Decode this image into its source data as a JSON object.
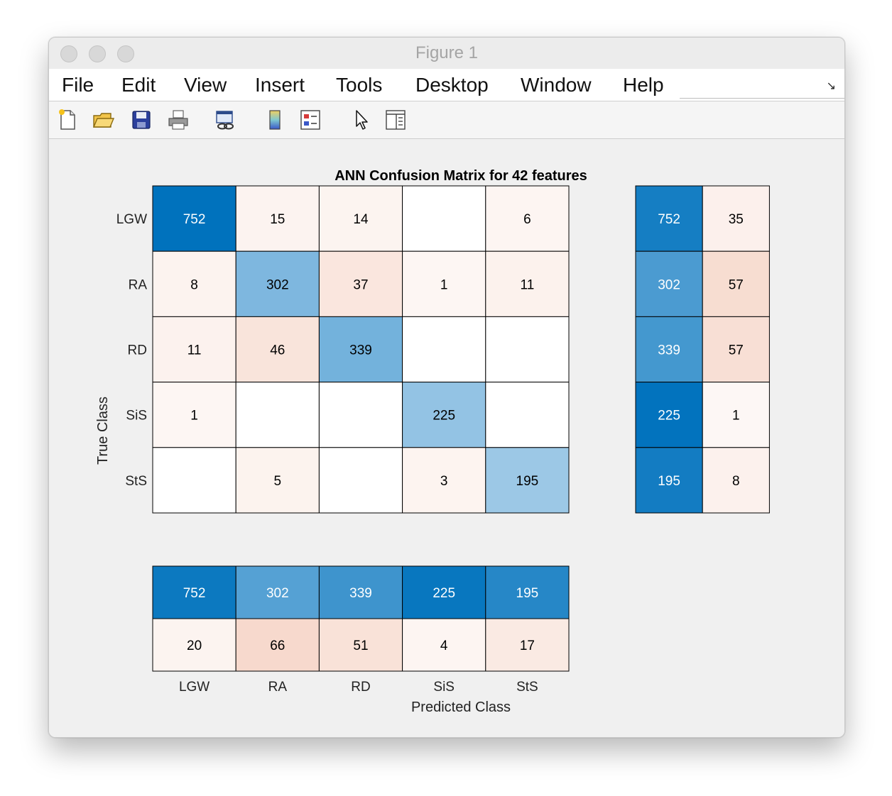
{
  "window": {
    "title": "Figure 1"
  },
  "menu": [
    "File",
    "Edit",
    "View",
    "Insert",
    "Tools",
    "Desktop",
    "Window",
    "Help"
  ],
  "toolbar": {
    "icons": [
      "new-figure-icon",
      "open-file-icon",
      "save-icon",
      "print-icon",
      "link-plot-icon",
      "colorbar-icon",
      "legend-icon",
      "pointer-icon",
      "property-inspector-icon"
    ]
  },
  "colors": {
    "blue_full": "#0072bd",
    "blue_light": "#d2e6f5",
    "red_full": "#d95319",
    "empty_cell": "#ffffff",
    "window_bg": "#f0f0f0"
  },
  "chart_data": {
    "type": "heatmap",
    "title": "ANN Confusion Matrix for 42 features",
    "xlabel": "Predicted Class",
    "ylabel": "True Class",
    "classes": [
      "LGW",
      "RA",
      "RD",
      "SiS",
      "StS"
    ],
    "matrix": [
      [
        752,
        15,
        14,
        null,
        6
      ],
      [
        8,
        302,
        37,
        1,
        11
      ],
      [
        11,
        46,
        339,
        null,
        null
      ],
      [
        1,
        null,
        null,
        225,
        null
      ],
      [
        null,
        5,
        null,
        3,
        195
      ]
    ],
    "row_summary": [
      [
        752,
        35
      ],
      [
        302,
        57
      ],
      [
        339,
        57
      ],
      [
        225,
        1
      ],
      [
        195,
        8
      ]
    ],
    "column_summary": {
      "correct": [
        752,
        302,
        339,
        225,
        195
      ],
      "incorrect": [
        20,
        66,
        51,
        4,
        17
      ]
    }
  }
}
